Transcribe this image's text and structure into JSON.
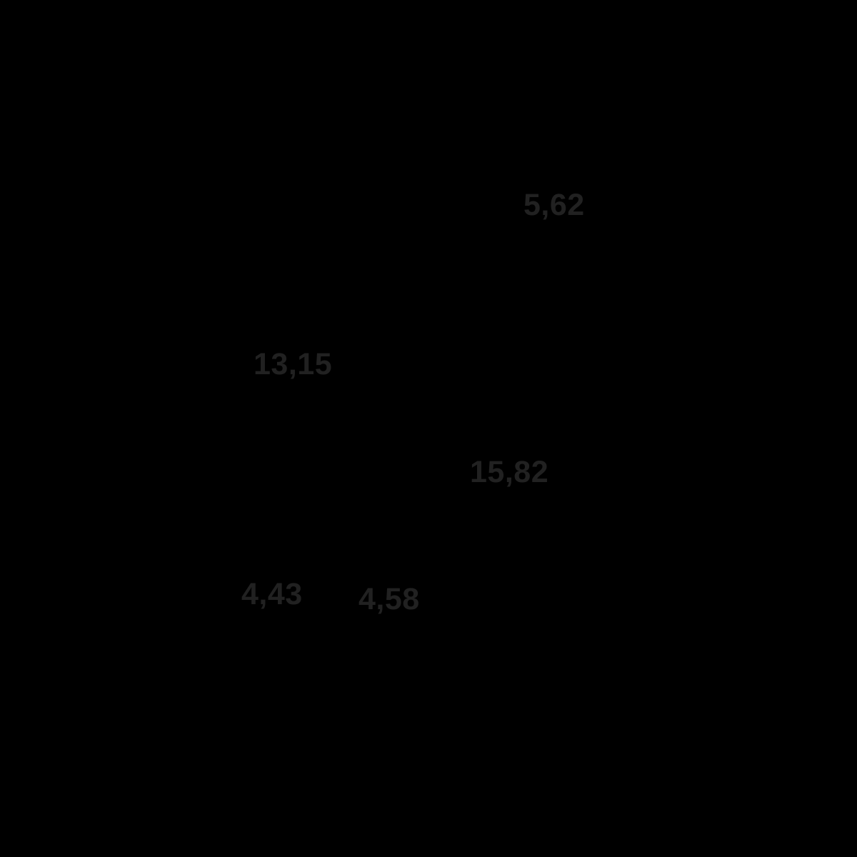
{
  "canvas": {
    "background": "#000000",
    "label_color": "#212121"
  },
  "chart_data": {
    "type": "scatter",
    "title": "",
    "xlabel": "",
    "ylabel": "",
    "values": [
      5.62,
      13.15,
      15.82,
      4.43,
      4.58
    ],
    "decimal_separator": ",",
    "grid": false,
    "legend": false,
    "notes": "Black-on-black chart: only the five data value labels are visible on the black canvas"
  },
  "labels": [
    {
      "text": "5,62"
    },
    {
      "text": "13,15"
    },
    {
      "text": "15,82"
    },
    {
      "text": "4,43"
    },
    {
      "text": "4,58"
    }
  ]
}
